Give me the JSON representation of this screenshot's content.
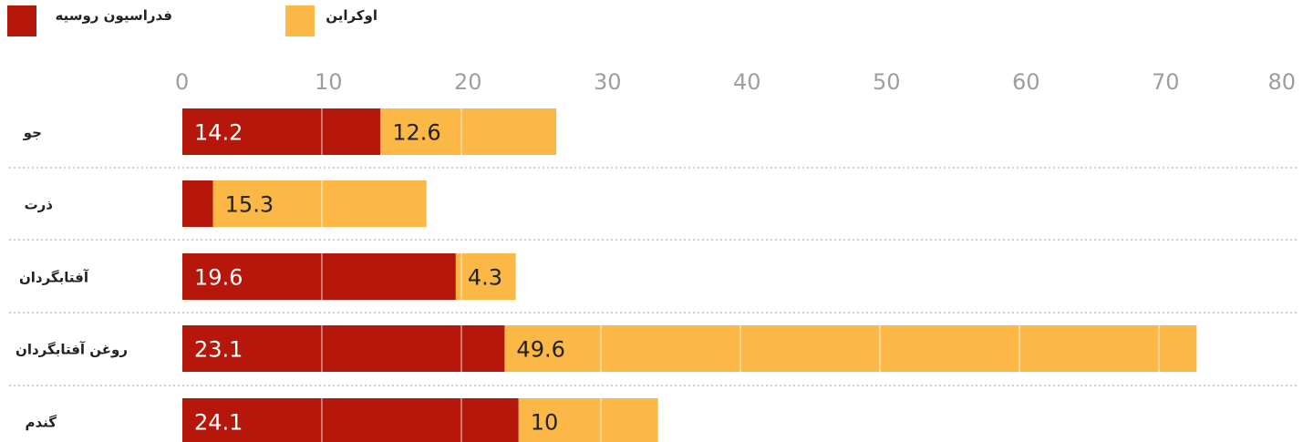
{
  "legend": [
    {
      "label": "فدراسیون روسیه",
      "color": "#b5180b"
    },
    {
      "label": "اوکراین",
      "color": "#fbb846"
    }
  ],
  "chart_data": {
    "type": "bar",
    "orientation": "horizontal",
    "stacked": true,
    "categories": [
      "جو",
      "ذرت",
      "آفتابگردان",
      "روغن آفتابگردان",
      "گندم"
    ],
    "series": [
      {
        "name": "فدراسیون روسیه",
        "color": "#b5180b",
        "values": [
          14.2,
          2.2,
          19.6,
          23.1,
          24.1
        ],
        "labels": [
          "14.2",
          "",
          "19.6",
          "23.1",
          "24.1"
        ]
      },
      {
        "name": "اوکراین",
        "color": "#fbb846",
        "values": [
          12.6,
          15.3,
          4.3,
          49.6,
          10
        ],
        "labels": [
          "12.6",
          "15.3",
          "4.3",
          "49.6",
          "10"
        ]
      }
    ],
    "xlim": [
      0,
      80
    ],
    "xticks": [
      0,
      10,
      20,
      30,
      40,
      50,
      60,
      70,
      80
    ],
    "xtick_labels": [
      "0",
      "10",
      "20",
      "30",
      "40",
      "50",
      "60",
      "70",
      "80"
    ],
    "grid": "vertical-white-lines",
    "separators": "dotted",
    "legend_position": "top"
  }
}
